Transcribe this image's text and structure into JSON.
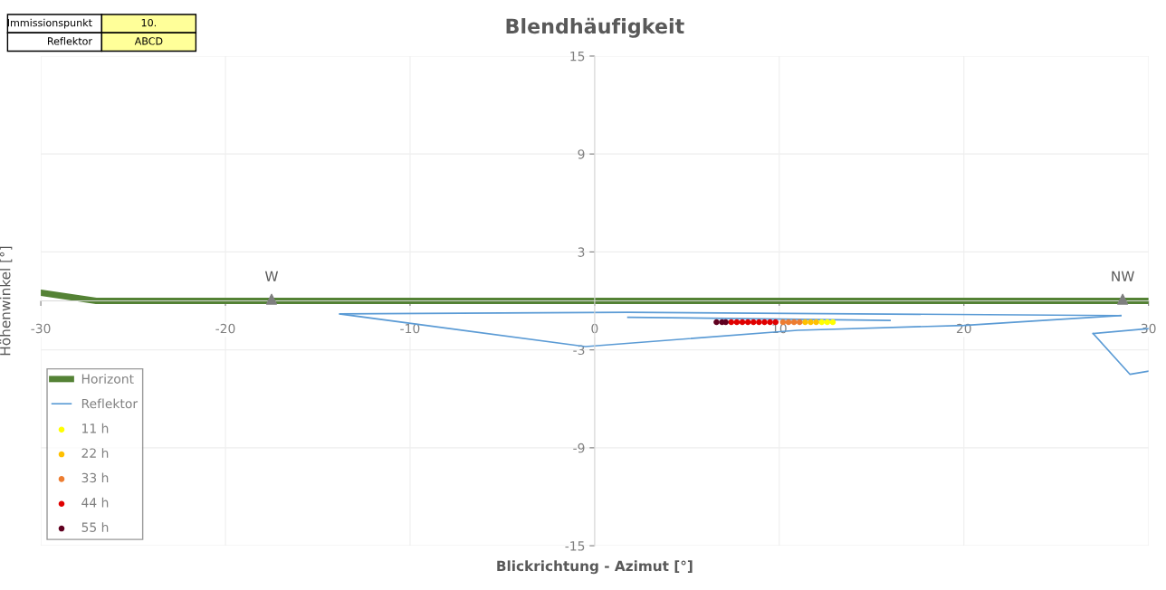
{
  "chart_data": {
    "type": "line",
    "title": "Blendhäufigkeit",
    "xlabel": "Blickrichtung - Azimut [°]",
    "ylabel": "Höhenwinkel [°]",
    "xlim": [
      -30,
      30
    ],
    "ylim": [
      -15,
      15
    ],
    "xticks": [
      -30,
      -20,
      -10,
      0,
      10,
      20,
      30
    ],
    "yticks": [
      -15,
      -9,
      -3,
      3,
      9,
      15
    ],
    "grid": true,
    "legend": "bottom left",
    "annotations": [
      "Immissionspunkt",
      "10.",
      "Reflektor",
      "ABCD",
      {
        "text": "W",
        "x": -17.5,
        "y": 0.1
      },
      {
        "text": "NW",
        "x": 28.6,
        "y": 0.1
      }
    ],
    "series": [
      {
        "name": "Horizont",
        "color": "#548235",
        "x": [
          -30,
          -27,
          30
        ],
        "values": [
          0.5,
          0.0,
          0.0
        ]
      },
      {
        "name": "Reflektor",
        "color": "#5b9bd5",
        "x": [
          -13.8,
          -0.5,
          11,
          20,
          28.5
        ],
        "values": [
          -0.8,
          -2.8,
          -1.8,
          -1.5,
          -0.9
        ]
      },
      {
        "color": "#5b9bd5",
        "x": [
          -13.8,
          1.8,
          28.5
        ],
        "values": [
          -0.8,
          -0.7,
          -0.9
        ]
      },
      {
        "color": "#5b9bd5",
        "x": [
          1.8,
          16
        ],
        "values": [
          -1.0,
          -1.2
        ]
      },
      {
        "color": "#5b9bd5",
        "x": [
          27,
          30
        ],
        "values": [
          -2.0,
          -1.7
        ]
      },
      {
        "color": "#5b9bd5",
        "x": [
          27,
          29,
          30
        ],
        "values": [
          -2.0,
          -4.5,
          -4.3
        ]
      },
      {
        "type": "scatter",
        "marker": "triangle",
        "color": "#7f7f7f",
        "x": [
          -17.5,
          28.6
        ],
        "values": [
          0.1,
          0.1
        ]
      },
      {
        "name": "11 h",
        "type": "scatter",
        "marker": "circle",
        "color": "#ffff00",
        "x": [
          12.3,
          12.6,
          12.9
        ],
        "values": [
          -1.3,
          -1.3,
          -1.3
        ]
      },
      {
        "name": "22 h",
        "type": "scatter",
        "marker": "circle",
        "color": "#ffc000",
        "x": [
          11.4,
          11.7,
          12.0
        ],
        "values": [
          -1.3,
          -1.3,
          -1.3
        ]
      },
      {
        "name": "33 h",
        "type": "scatter",
        "marker": "circle",
        "color": "#ed7d31",
        "x": [
          10.2,
          10.5,
          10.8,
          11.1
        ],
        "values": [
          -1.3,
          -1.3,
          -1.3,
          -1.3
        ]
      },
      {
        "name": "44 h",
        "type": "scatter",
        "marker": "circle",
        "color": "#e00000",
        "x": [
          7.4,
          7.7,
          8.0,
          8.3,
          8.6,
          8.9,
          9.2,
          9.5,
          9.8
        ],
        "values": [
          -1.3,
          -1.3,
          -1.3,
          -1.3,
          -1.3,
          -1.3,
          -1.3,
          -1.3,
          -1.3
        ]
      },
      {
        "name": "55 h",
        "type": "scatter",
        "marker": "circle",
        "color": "#600020",
        "x": [
          6.6,
          6.9,
          7.1
        ],
        "values": [
          -1.3,
          -1.3,
          -1.3
        ]
      }
    ]
  }
}
